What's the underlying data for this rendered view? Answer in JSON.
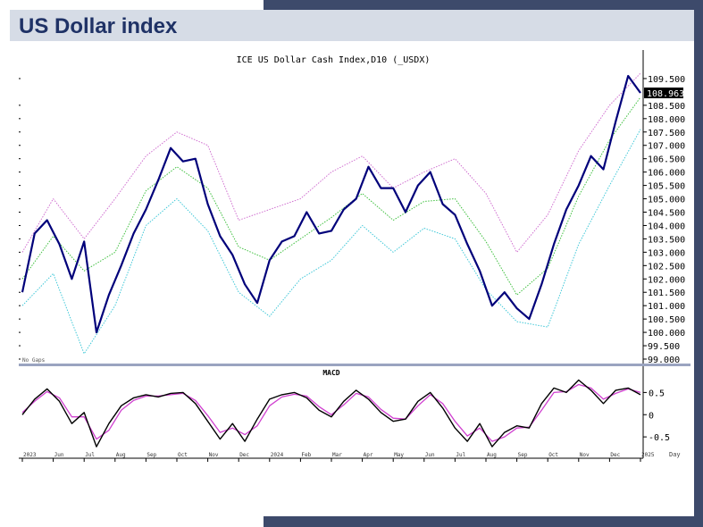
{
  "slide": {
    "title": "US Dollar index"
  },
  "chart_data": [
    {
      "type": "line",
      "title": "ICE US Dollar Cash Index,D10 (_USDX)",
      "ylim": [
        98.9,
        110.0
      ],
      "yticks": [
        109.5,
        108.5,
        108.0,
        107.5,
        107.0,
        106.5,
        106.0,
        105.5,
        105.0,
        104.5,
        104.0,
        103.5,
        103.0,
        102.5,
        102.0,
        101.5,
        101.0,
        100.5,
        100.0,
        99.5,
        99.0
      ],
      "ytick_labels": [
        "109.500",
        "108.500",
        "108.000",
        "107.500",
        "107.000",
        "106.500",
        "106.000",
        "105.500",
        "105.000",
        "104.500",
        "104.000",
        "103.500",
        "103.000",
        "102.500",
        "102.000",
        "101.500",
        "101.000",
        "100.500",
        "100.000",
        "99.500",
        "99.000"
      ],
      "last_value_label": "108.963",
      "last_value": 108.963,
      "corner_label": "No Gaps",
      "colors": {
        "price": "#00007a",
        "upper_band": "#d070d0",
        "middle_band": "#40c040",
        "lower_band": "#40c8d8"
      },
      "series": [
        {
          "role": "price",
          "x": [
            0,
            2,
            4,
            6,
            8,
            10,
            12,
            14,
            16,
            18,
            20,
            22,
            24,
            26,
            28,
            30,
            32,
            34,
            36,
            38,
            40,
            42,
            44,
            46,
            48,
            50,
            52,
            54,
            56,
            58,
            60,
            62,
            64,
            66,
            68,
            70,
            72,
            74,
            76,
            78,
            80,
            82,
            84,
            86,
            88,
            90,
            92,
            94,
            96,
            98,
            100
          ],
          "values": [
            101.5,
            103.7,
            104.2,
            103.3,
            102.0,
            103.4,
            100.0,
            101.4,
            102.5,
            103.7,
            104.6,
            105.7,
            106.9,
            106.4,
            106.5,
            104.8,
            103.6,
            102.9,
            101.8,
            101.1,
            102.7,
            103.4,
            103.6,
            104.5,
            103.7,
            103.8,
            104.6,
            105.0,
            106.2,
            105.4,
            105.4,
            104.5,
            105.5,
            106.0,
            104.8,
            104.4,
            103.3,
            102.3,
            101.0,
            101.5,
            100.9,
            100.5,
            101.8,
            103.3,
            104.6,
            105.5,
            106.6,
            106.1,
            107.9,
            109.6,
            108.963
          ]
        },
        {
          "role": "upper_band",
          "x": [
            0,
            5,
            10,
            15,
            20,
            25,
            30,
            35,
            40,
            45,
            50,
            55,
            60,
            65,
            70,
            75,
            80,
            85,
            90,
            95,
            100
          ],
          "values": [
            103.0,
            105.0,
            103.5,
            105.0,
            106.6,
            107.5,
            107.0,
            104.2,
            104.6,
            105.0,
            106.0,
            106.6,
            105.4,
            106.0,
            106.5,
            105.2,
            103.0,
            104.4,
            106.8,
            108.5,
            109.7
          ]
        },
        {
          "role": "middle_band",
          "x": [
            0,
            5,
            10,
            15,
            20,
            25,
            30,
            35,
            40,
            45,
            50,
            55,
            60,
            65,
            70,
            75,
            80,
            85,
            90,
            95,
            100
          ],
          "values": [
            102.0,
            103.6,
            102.3,
            103.0,
            105.3,
            106.2,
            105.4,
            103.2,
            102.7,
            103.5,
            104.3,
            105.2,
            104.2,
            104.9,
            105.0,
            103.4,
            101.4,
            102.4,
            105.1,
            107.2,
            108.8
          ]
        },
        {
          "role": "lower_band",
          "x": [
            0,
            5,
            10,
            15,
            20,
            25,
            30,
            35,
            40,
            45,
            50,
            55,
            60,
            65,
            70,
            75,
            80,
            85,
            90,
            95,
            100
          ],
          "values": [
            101.0,
            102.2,
            99.2,
            101.0,
            104.0,
            105.0,
            103.8,
            101.5,
            100.6,
            102.0,
            102.7,
            104.0,
            103.0,
            103.9,
            103.5,
            101.6,
            100.4,
            100.2,
            103.3,
            105.5,
            107.6
          ]
        }
      ]
    },
    {
      "type": "line",
      "title": "MACD",
      "ylim": [
        -0.9,
        0.85
      ],
      "yticks": [
        0.5,
        0.0,
        -0.5
      ],
      "ytick_labels": [
        "0.5",
        "0",
        "-0.5"
      ],
      "xlabel": "Day",
      "xtick_labels": [
        "2023",
        "Jun",
        "Jul",
        "Aug",
        "Sep",
        "Oct",
        "Nov",
        "Dec",
        "2024",
        "Feb",
        "Mar",
        "Apr",
        "May",
        "Jun",
        "Jul",
        "Aug",
        "Sep",
        "Oct",
        "Nov",
        "Dec",
        "2025"
      ],
      "xticks": [
        0,
        5,
        10,
        15,
        20,
        25,
        30,
        35,
        40,
        45,
        50,
        55,
        60,
        65,
        70,
        75,
        80,
        85,
        90,
        95,
        100
      ],
      "colors": {
        "macd": "#000000",
        "signal": "#d040d0"
      },
      "series": [
        {
          "role": "macd",
          "x": [
            0,
            2,
            4,
            6,
            8,
            10,
            12,
            14,
            16,
            18,
            20,
            22,
            24,
            26,
            28,
            30,
            32,
            34,
            36,
            38,
            40,
            42,
            44,
            46,
            48,
            50,
            52,
            54,
            56,
            58,
            60,
            62,
            64,
            66,
            68,
            70,
            72,
            74,
            76,
            78,
            80,
            82,
            84,
            86,
            88,
            90,
            92,
            94,
            96,
            98,
            100
          ],
          "values": [
            0.0,
            0.35,
            0.58,
            0.3,
            -0.2,
            0.05,
            -0.72,
            -0.2,
            0.2,
            0.38,
            0.45,
            0.4,
            0.48,
            0.5,
            0.25,
            -0.15,
            -0.55,
            -0.2,
            -0.6,
            -0.1,
            0.35,
            0.45,
            0.5,
            0.38,
            0.1,
            -0.05,
            0.3,
            0.55,
            0.35,
            0.05,
            -0.15,
            -0.1,
            0.3,
            0.5,
            0.15,
            -0.3,
            -0.6,
            -0.2,
            -0.72,
            -0.4,
            -0.25,
            -0.3,
            0.25,
            0.6,
            0.5,
            0.78,
            0.55,
            0.25,
            0.55,
            0.6,
            0.45
          ]
        },
        {
          "role": "signal",
          "x": [
            0,
            2,
            4,
            6,
            8,
            10,
            12,
            14,
            16,
            18,
            20,
            22,
            24,
            26,
            28,
            30,
            32,
            34,
            36,
            38,
            40,
            42,
            44,
            46,
            48,
            50,
            52,
            54,
            56,
            58,
            60,
            62,
            64,
            66,
            68,
            70,
            72,
            74,
            76,
            78,
            80,
            82,
            84,
            86,
            88,
            90,
            92,
            94,
            96,
            98,
            100
          ],
          "values": [
            0.05,
            0.3,
            0.52,
            0.38,
            -0.05,
            -0.05,
            -0.55,
            -0.35,
            0.1,
            0.32,
            0.42,
            0.42,
            0.45,
            0.48,
            0.32,
            -0.02,
            -0.4,
            -0.3,
            -0.45,
            -0.25,
            0.2,
            0.4,
            0.46,
            0.42,
            0.18,
            0.0,
            0.22,
            0.48,
            0.4,
            0.12,
            -0.08,
            -0.1,
            0.2,
            0.45,
            0.25,
            -0.15,
            -0.48,
            -0.3,
            -0.6,
            -0.5,
            -0.3,
            -0.28,
            0.1,
            0.5,
            0.52,
            0.68,
            0.6,
            0.35,
            0.48,
            0.58,
            0.5
          ]
        }
      ]
    }
  ]
}
